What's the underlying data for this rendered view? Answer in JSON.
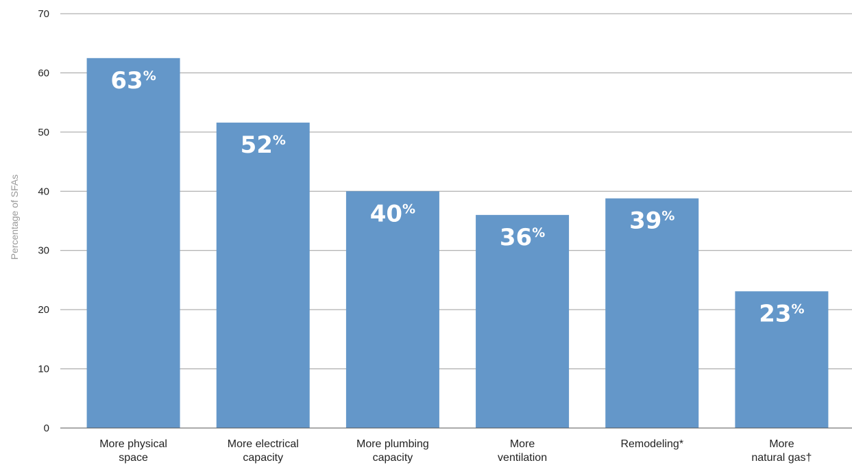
{
  "chart_data": {
    "type": "bar",
    "ylabel": "Percentage of SFAs",
    "xlabel": "",
    "ylim": [
      0,
      70
    ],
    "yticks": [
      0,
      10,
      20,
      30,
      40,
      50,
      60,
      70
    ],
    "grid": true,
    "bar_color": "#6497c9",
    "categories": [
      [
        "More physical",
        "space"
      ],
      [
        "More electrical",
        "capacity"
      ],
      [
        "More plumbing",
        "capacity"
      ],
      [
        "More",
        "ventilation"
      ],
      [
        "Remodeling*"
      ],
      [
        "More",
        "natural gas†"
      ]
    ],
    "values": [
      62.5,
      51.6,
      40,
      36,
      38.8,
      23.1
    ],
    "data_labels": [
      {
        "number": "63",
        "suffix": "%"
      },
      {
        "number": "52",
        "suffix": "%"
      },
      {
        "number": "40",
        "suffix": "%"
      },
      {
        "number": "36",
        "suffix": "%"
      },
      {
        "number": "39",
        "suffix": "%"
      },
      {
        "number": "23",
        "suffix": "%"
      }
    ]
  }
}
